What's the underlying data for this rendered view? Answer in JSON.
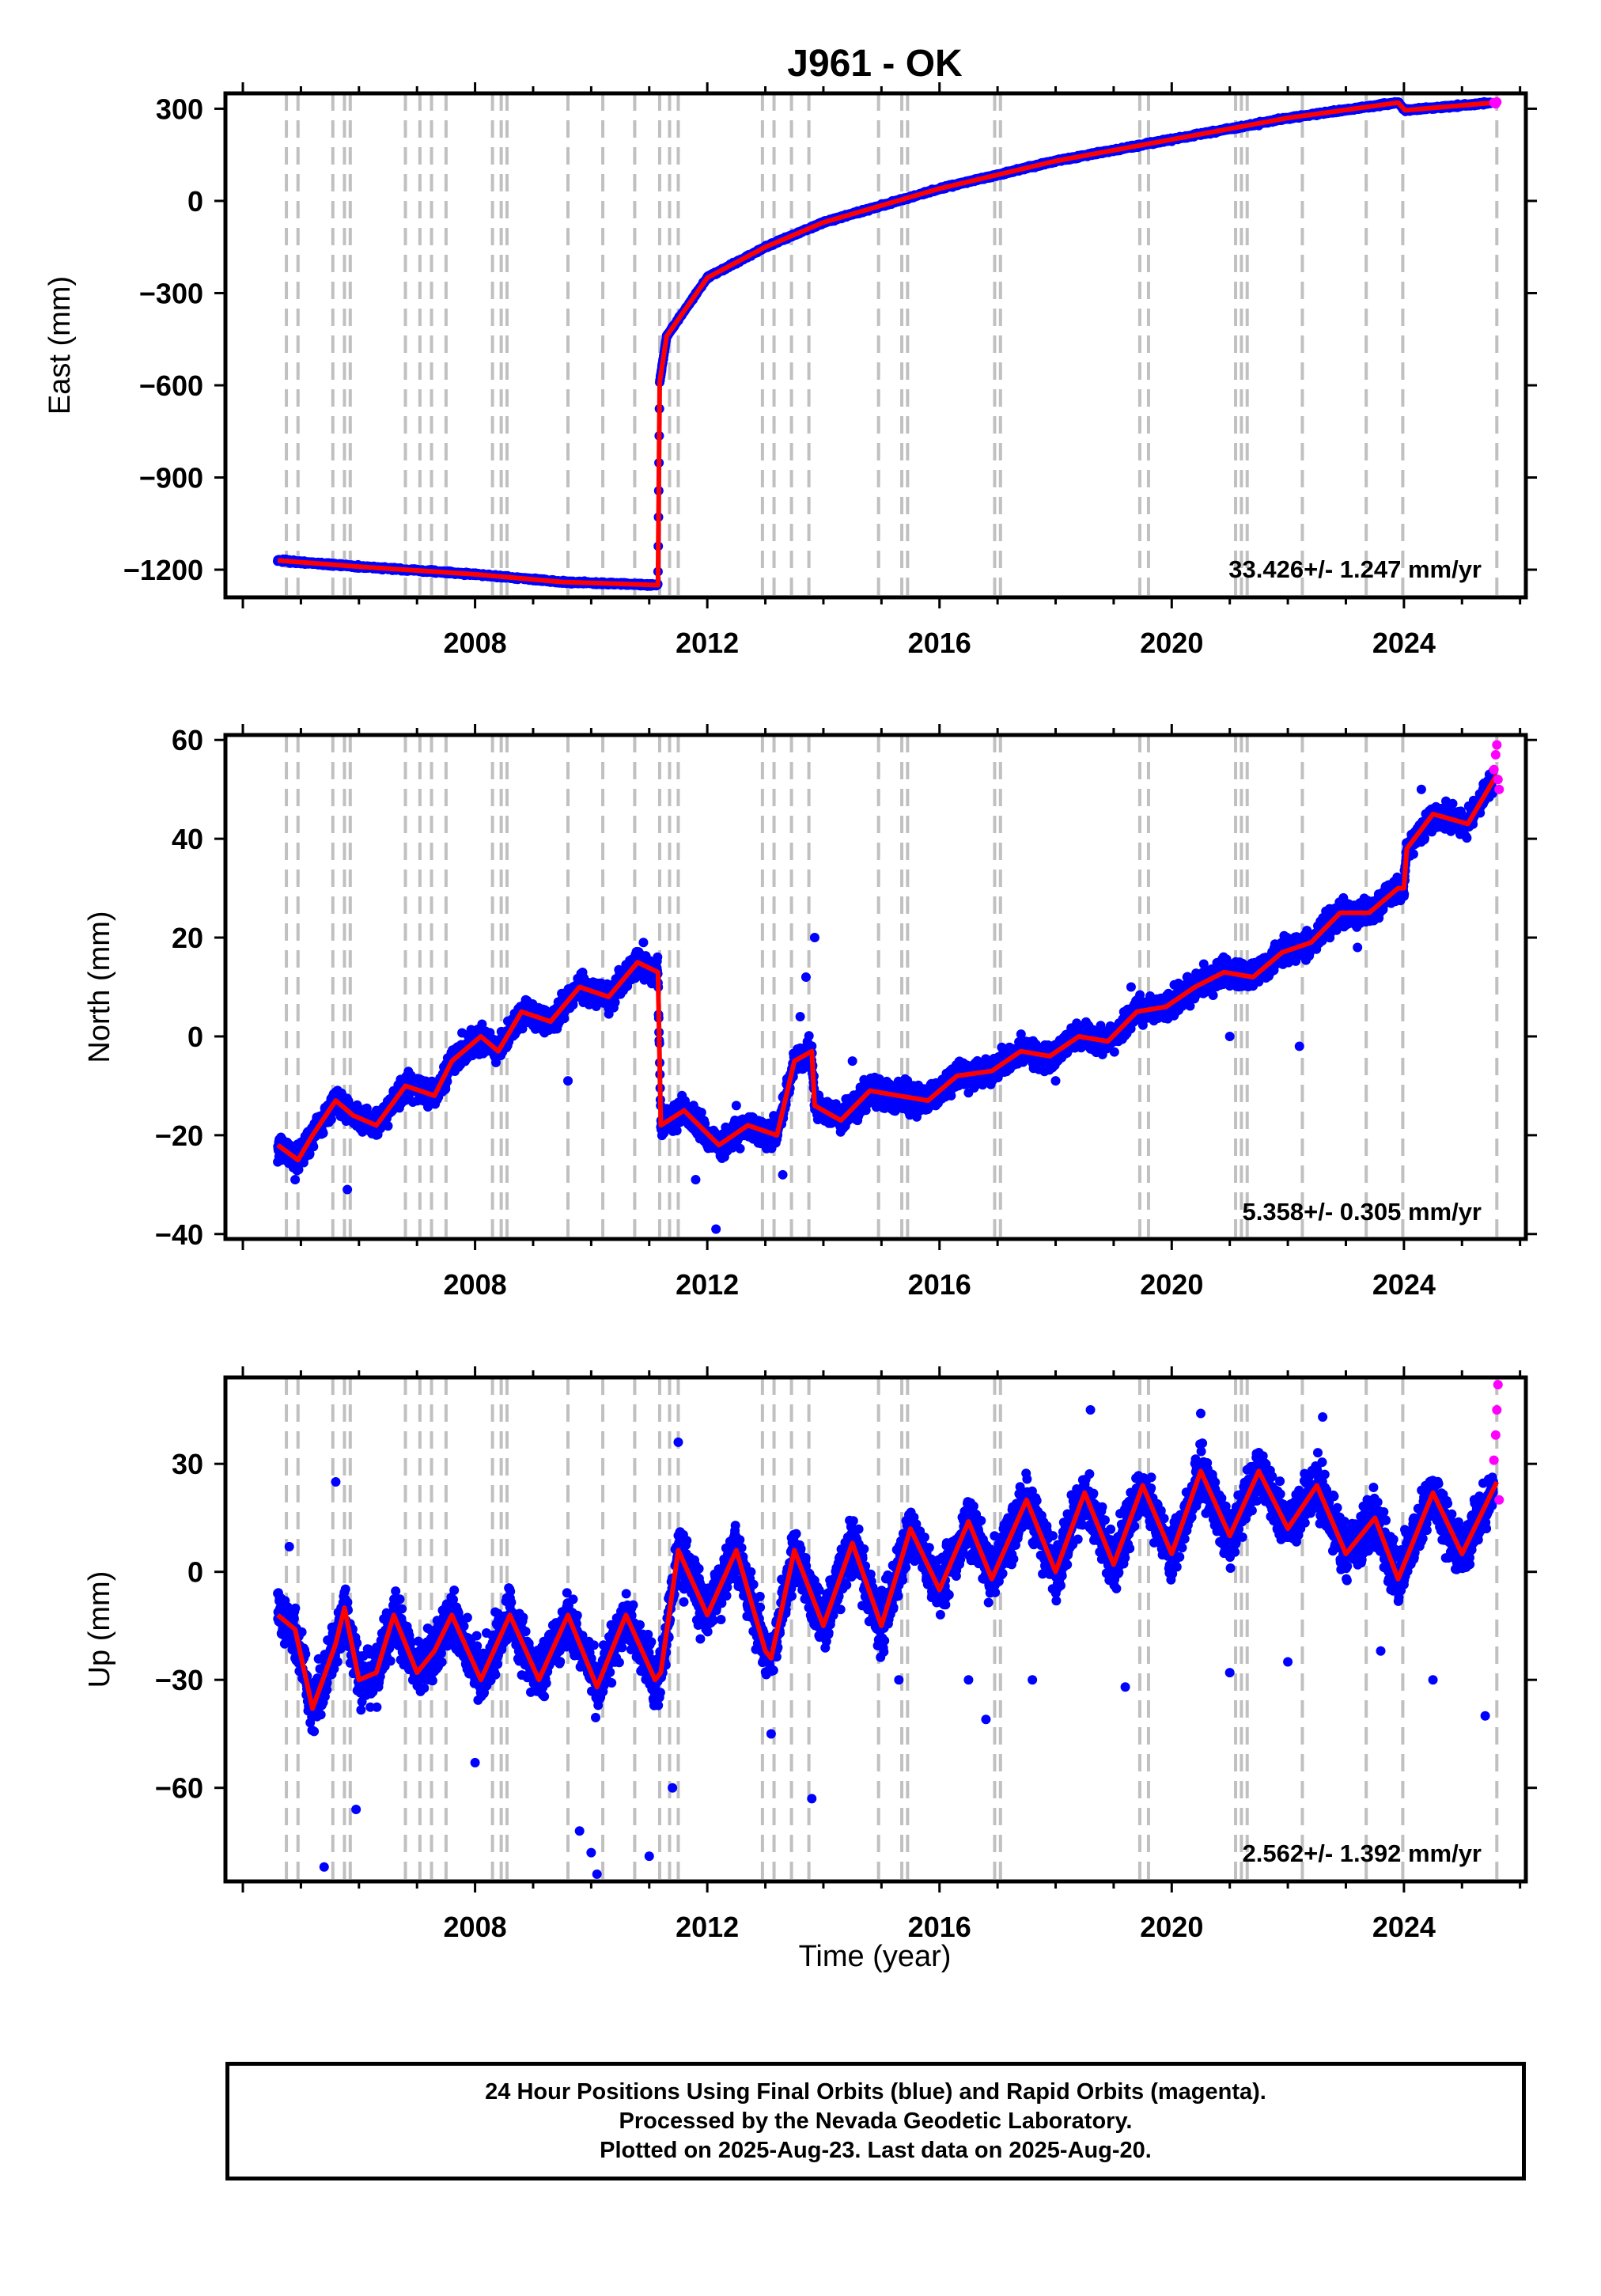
{
  "title": "J961 - OK",
  "xlabel": "Time (year)",
  "colors": {
    "final": "#0000ff",
    "rapid": "#ff00ff",
    "model": "#ff0000",
    "steps": "#c0c0c0"
  },
  "chart_data": [
    {
      "type": "scatter",
      "ylabel": "East (mm)",
      "xlim": [
        2003.7,
        2026.1
      ],
      "ylim": [
        -1290,
        350
      ],
      "yticks": [
        -1200,
        -900,
        -600,
        -300,
        0,
        300
      ],
      "xticks": [
        2008,
        2012,
        2016,
        2020,
        2024
      ],
      "rate": "33.426+/- 1.247 mm/yr",
      "anchors": [
        [
          2004.6,
          -1170
        ],
        [
          2006.0,
          -1190
        ],
        [
          2008.0,
          -1215
        ],
        [
          2009.5,
          -1240
        ],
        [
          2011.15,
          -1250
        ],
        [
          2011.18,
          -590
        ],
        [
          2011.3,
          -440
        ],
        [
          2012.0,
          -250
        ],
        [
          2013.0,
          -150
        ],
        [
          2014.0,
          -70
        ],
        [
          2016.0,
          40
        ],
        [
          2018.0,
          130
        ],
        [
          2020.0,
          200
        ],
        [
          2022.0,
          270
        ],
        [
          2023.9,
          320
        ],
        [
          2024.02,
          295
        ],
        [
          2025.55,
          320
        ]
      ],
      "final_points": [
        [
          2004.6,
          -1172
        ],
        [
          2005.2,
          -1181
        ],
        [
          2005.8,
          -1190
        ],
        [
          2006.5,
          -1196
        ],
        [
          2007.2,
          -1204
        ],
        [
          2007.8,
          -1213
        ],
        [
          2008.4,
          -1222
        ],
        [
          2009.1,
          -1234
        ],
        [
          2009.8,
          -1242
        ],
        [
          2010.5,
          -1248
        ],
        [
          2011.1,
          -1250
        ],
        [
          2011.3,
          -438
        ],
        [
          2011.8,
          -300
        ],
        [
          2012.5,
          -205
        ],
        [
          2013.2,
          -130
        ],
        [
          2014.2,
          -60
        ],
        [
          2015.2,
          0
        ],
        [
          2016.3,
          50
        ],
        [
          2017.3,
          100
        ],
        [
          2018.4,
          140
        ],
        [
          2019.4,
          175
        ],
        [
          2020.5,
          215
        ],
        [
          2021.5,
          245
        ],
        [
          2022.5,
          285
        ],
        [
          2023.5,
          312
        ],
        [
          2024.5,
          302
        ],
        [
          2025.5,
          318
        ]
      ],
      "rapid_points": [
        [
          2025.55,
          320
        ],
        [
          2025.58,
          316
        ],
        [
          2025.6,
          322
        ]
      ],
      "steps": [
        2004.75,
        2004.95,
        2005.55,
        2005.75,
        2005.85,
        2006.8,
        2007.05,
        2007.25,
        2007.5,
        2008.3,
        2008.45,
        2008.55,
        2009.6,
        2010.2,
        2010.75,
        2011.18,
        2011.35,
        2011.5,
        2012.95,
        2013.15,
        2013.45,
        2013.75,
        2014.95,
        2015.35,
        2015.45,
        2016.95,
        2017.05,
        2019.45,
        2019.6,
        2021.1,
        2021.2,
        2021.3,
        2022.25,
        2023.35,
        2023.98,
        2025.6
      ]
    },
    {
      "type": "scatter",
      "ylabel": "North (mm)",
      "xlim": [
        2003.7,
        2026.1
      ],
      "ylim": [
        -41,
        61
      ],
      "yticks": [
        -40,
        -20,
        0,
        20,
        40,
        60
      ],
      "xticks": [
        2008,
        2012,
        2016,
        2020,
        2024
      ],
      "rate": "5.358+/- 0.305 mm/yr",
      "anchors": [
        [
          2004.6,
          -22
        ],
        [
          2004.95,
          -25
        ],
        [
          2005.2,
          -20
        ],
        [
          2005.6,
          -13
        ],
        [
          2005.9,
          -16
        ],
        [
          2006.3,
          -18
        ],
        [
          2006.8,
          -10
        ],
        [
          2007.3,
          -12
        ],
        [
          2007.6,
          -5
        ],
        [
          2008.1,
          0
        ],
        [
          2008.4,
          -3
        ],
        [
          2008.8,
          5
        ],
        [
          2009.3,
          3
        ],
        [
          2009.8,
          10
        ],
        [
          2010.3,
          8
        ],
        [
          2010.8,
          15
        ],
        [
          2011.15,
          13
        ],
        [
          2011.2,
          -18
        ],
        [
          2011.6,
          -15
        ],
        [
          2012.2,
          -22
        ],
        [
          2012.7,
          -18
        ],
        [
          2013.2,
          -20
        ],
        [
          2013.5,
          -5
        ],
        [
          2013.8,
          -3
        ],
        [
          2013.85,
          -14
        ],
        [
          2014.3,
          -17
        ],
        [
          2014.8,
          -11
        ],
        [
          2015.3,
          -12
        ],
        [
          2015.8,
          -13
        ],
        [
          2016.3,
          -8
        ],
        [
          2016.9,
          -7
        ],
        [
          2017.4,
          -3
        ],
        [
          2017.9,
          -4
        ],
        [
          2018.4,
          0
        ],
        [
          2018.9,
          -1
        ],
        [
          2019.4,
          5
        ],
        [
          2019.9,
          6
        ],
        [
          2020.4,
          10
        ],
        [
          2020.9,
          13
        ],
        [
          2021.4,
          12
        ],
        [
          2021.9,
          17
        ],
        [
          2022.4,
          19
        ],
        [
          2022.9,
          25
        ],
        [
          2023.4,
          25
        ],
        [
          2023.9,
          30
        ],
        [
          2024.0,
          30
        ],
        [
          2024.05,
          38
        ],
        [
          2024.5,
          45
        ],
        [
          2025.1,
          43
        ],
        [
          2025.6,
          53
        ]
      ],
      "final_points": [
        [
          2004.9,
          -29
        ],
        [
          2005.8,
          -31
        ],
        [
          2006.3,
          -15
        ],
        [
          2008.8,
          3
        ],
        [
          2009.6,
          -9
        ],
        [
          2010.9,
          19
        ],
        [
          2011.8,
          -29
        ],
        [
          2012.15,
          -39
        ],
        [
          2012.5,
          -14
        ],
        [
          2013.3,
          -28
        ],
        [
          2013.6,
          4
        ],
        [
          2013.85,
          20
        ],
        [
          2013.7,
          12
        ],
        [
          2014.5,
          -5
        ],
        [
          2016.2,
          -12
        ],
        [
          2018.0,
          -9
        ],
        [
          2019.3,
          10
        ],
        [
          2021.0,
          0
        ],
        [
          2022.2,
          -2
        ],
        [
          2023.2,
          18
        ],
        [
          2024.3,
          50
        ],
        [
          2025.5,
          53
        ]
      ],
      "rapid_points": [
        [
          2025.55,
          54
        ],
        [
          2025.58,
          57
        ],
        [
          2025.6,
          59
        ],
        [
          2025.62,
          52
        ],
        [
          2025.64,
          50
        ]
      ],
      "steps": [
        2004.75,
        2004.95,
        2005.55,
        2005.75,
        2005.85,
        2006.8,
        2007.05,
        2007.25,
        2007.5,
        2008.3,
        2008.45,
        2008.55,
        2009.6,
        2010.2,
        2010.75,
        2011.18,
        2011.35,
        2011.5,
        2012.95,
        2013.15,
        2013.45,
        2013.75,
        2014.95,
        2015.35,
        2015.45,
        2016.95,
        2017.05,
        2019.45,
        2019.6,
        2021.1,
        2021.2,
        2021.3,
        2022.25,
        2023.35,
        2023.98,
        2025.6
      ]
    },
    {
      "type": "scatter",
      "ylabel": "Up (mm)",
      "xlim": [
        2003.7,
        2026.1
      ],
      "ylim": [
        -86,
        54
      ],
      "yticks": [
        -60,
        -30,
        0,
        30
      ],
      "xticks": [
        2008,
        2012,
        2016,
        2020,
        2024
      ],
      "rate": "2.562+/- 1.392 mm/yr",
      "anchors": [
        [
          2004.6,
          -12
        ],
        [
          2004.9,
          -16
        ],
        [
          2005.2,
          -38
        ],
        [
          2005.6,
          -20
        ],
        [
          2005.75,
          -10
        ],
        [
          2006.0,
          -30
        ],
        [
          2006.3,
          -28
        ],
        [
          2006.6,
          -12
        ],
        [
          2007.0,
          -28
        ],
        [
          2007.3,
          -22
        ],
        [
          2007.6,
          -12
        ],
        [
          2008.1,
          -30
        ],
        [
          2008.6,
          -12
        ],
        [
          2009.1,
          -30
        ],
        [
          2009.6,
          -12
        ],
        [
          2010.1,
          -32
        ],
        [
          2010.6,
          -12
        ],
        [
          2011.1,
          -30
        ],
        [
          2011.2,
          -28
        ],
        [
          2011.5,
          6
        ],
        [
          2012.0,
          -12
        ],
        [
          2012.5,
          6
        ],
        [
          2013.0,
          -22
        ],
        [
          2013.1,
          -24
        ],
        [
          2013.5,
          6
        ],
        [
          2014.0,
          -15
        ],
        [
          2014.5,
          8
        ],
        [
          2015.0,
          -15
        ],
        [
          2015.5,
          12
        ],
        [
          2016.0,
          -5
        ],
        [
          2016.5,
          14
        ],
        [
          2016.9,
          -2
        ],
        [
          2017.5,
          20
        ],
        [
          2018.0,
          0
        ],
        [
          2018.5,
          22
        ],
        [
          2019.0,
          2
        ],
        [
          2019.5,
          24
        ],
        [
          2020.0,
          5
        ],
        [
          2020.5,
          28
        ],
        [
          2021.0,
          10
        ],
        [
          2021.5,
          28
        ],
        [
          2022.0,
          12
        ],
        [
          2022.5,
          24
        ],
        [
          2023.0,
          5
        ],
        [
          2023.5,
          15
        ],
        [
          2023.9,
          -2
        ],
        [
          2024.5,
          22
        ],
        [
          2025.0,
          5
        ],
        [
          2025.6,
          25
        ]
      ],
      "final_points": [
        [
          2004.8,
          7
        ],
        [
          2005.4,
          -82
        ],
        [
          2005.6,
          25
        ],
        [
          2005.95,
          -66
        ],
        [
          2008.0,
          -53
        ],
        [
          2009.8,
          -72
        ],
        [
          2010.0,
          -78
        ],
        [
          2010.1,
          -84
        ],
        [
          2011.0,
          -79
        ],
        [
          2011.4,
          -60
        ],
        [
          2011.5,
          36
        ],
        [
          2013.1,
          -45
        ],
        [
          2013.8,
          -63
        ],
        [
          2015.3,
          -30
        ],
        [
          2016.5,
          -30
        ],
        [
          2016.8,
          -41
        ],
        [
          2017.6,
          -30
        ],
        [
          2018.6,
          45
        ],
        [
          2019.2,
          -32
        ],
        [
          2020.5,
          44
        ],
        [
          2021.0,
          -28
        ],
        [
          2022.0,
          -25
        ],
        [
          2022.6,
          43
        ],
        [
          2023.6,
          -22
        ],
        [
          2024.5,
          -30
        ],
        [
          2025.4,
          -40
        ]
      ],
      "rapid_points": [
        [
          2025.55,
          31
        ],
        [
          2025.58,
          38
        ],
        [
          2025.6,
          45
        ],
        [
          2025.62,
          52
        ],
        [
          2025.64,
          20
        ]
      ],
      "steps": [
        2004.75,
        2004.95,
        2005.55,
        2005.75,
        2005.85,
        2006.8,
        2007.05,
        2007.25,
        2007.5,
        2008.3,
        2008.45,
        2008.55,
        2009.6,
        2010.2,
        2010.75,
        2011.18,
        2011.35,
        2011.5,
        2012.95,
        2013.15,
        2013.45,
        2013.75,
        2014.95,
        2015.35,
        2015.45,
        2016.95,
        2017.05,
        2019.45,
        2019.6,
        2021.1,
        2021.2,
        2021.3,
        2022.25,
        2023.35,
        2023.98,
        2025.6
      ]
    }
  ],
  "footer": {
    "line1": "24 Hour Positions Using Final Orbits (blue) and Rapid Orbits (magenta).",
    "line2": "Processed by the Nevada Geodetic Laboratory.",
    "line3": "Plotted on 2025-Aug-23. Last data on 2025-Aug-20."
  }
}
